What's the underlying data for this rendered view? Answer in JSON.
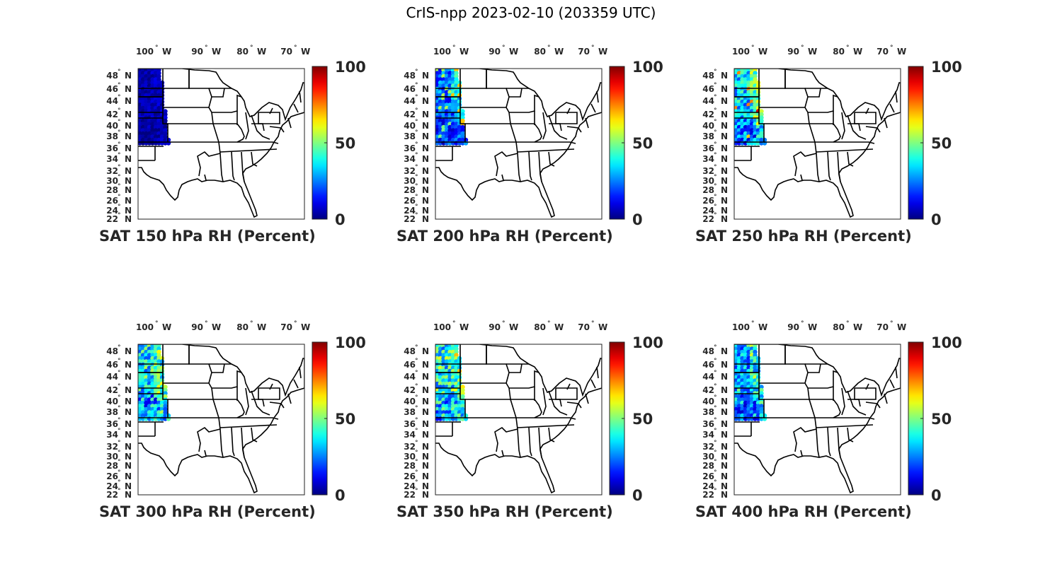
{
  "figure": {
    "title": "CrIS-npp 2023-02-10 (203359 UTC)"
  },
  "axes": {
    "lon_ticks": [
      "100",
      "90",
      "80",
      "70"
    ],
    "lon_suffix": "W",
    "lat_ticks": [
      "48",
      "46",
      "44",
      "42",
      "40",
      "38",
      "36",
      "34",
      "32",
      "30",
      "28",
      "26",
      "24",
      "22"
    ],
    "lat_suffix": "N",
    "degree_symbol": "°"
  },
  "colorbar": {
    "colormap": "jet",
    "ticks": [
      "100",
      "50",
      "0"
    ],
    "range": [
      0,
      100
    ]
  },
  "panels": [
    {
      "title": "SAT 150 hPa RH (Percent)",
      "level_hPa": 150,
      "swath_mean_rh": 5,
      "swath_max_rh": 8
    },
    {
      "title": "SAT 200 hPa RH (Percent)",
      "level_hPa": 200,
      "swath_mean_rh": 22,
      "swath_max_rh": 55
    },
    {
      "title": "SAT 250 hPa RH (Percent)",
      "level_hPa": 250,
      "swath_mean_rh": 32,
      "swath_max_rh": 75
    },
    {
      "title": "SAT 300 hPa RH (Percent)",
      "level_hPa": 300,
      "swath_mean_rh": 35,
      "swath_max_rh": 55
    },
    {
      "title": "SAT 350 hPa RH (Percent)",
      "level_hPa": 350,
      "swath_mean_rh": 38,
      "swath_max_rh": 60
    },
    {
      "title": "SAT 400 hPa RH (Percent)",
      "level_hPa": 400,
      "swath_mean_rh": 28,
      "swath_max_rh": 50
    }
  ]
}
